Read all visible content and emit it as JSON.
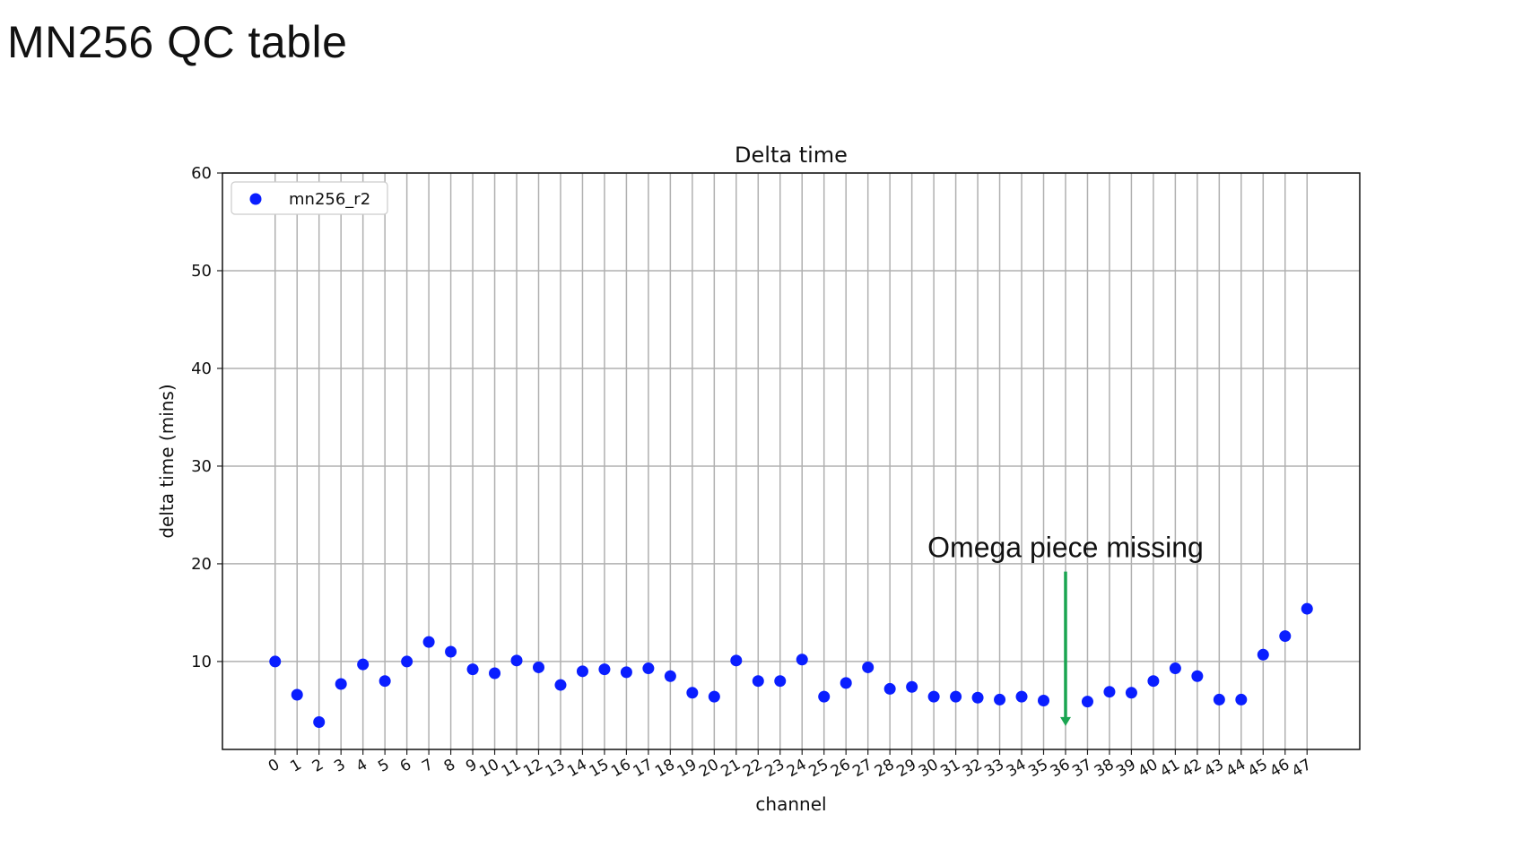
{
  "slide": {
    "title": "MN256 QC table"
  },
  "chart_data": {
    "type": "scatter",
    "title": "Delta time",
    "xlabel": "channel",
    "ylabel": "delta time (mins)",
    "ylim": [
      1,
      60
    ],
    "yticks": [
      10,
      20,
      30,
      40,
      50,
      60
    ],
    "xlim": [
      -2.4,
      49.4
    ],
    "xticks": [
      0,
      1,
      2,
      3,
      4,
      5,
      6,
      7,
      8,
      9,
      10,
      11,
      12,
      13,
      14,
      15,
      16,
      17,
      18,
      19,
      20,
      21,
      22,
      23,
      24,
      25,
      26,
      27,
      28,
      29,
      30,
      31,
      32,
      33,
      34,
      35,
      36,
      37,
      38,
      39,
      40,
      41,
      42,
      43,
      44,
      45,
      46,
      47
    ],
    "grid": true,
    "legend_position": "top-left",
    "series": [
      {
        "name": "mn256_r2",
        "color": "#0a1eff",
        "x": [
          0,
          1,
          2,
          3,
          4,
          5,
          6,
          7,
          8,
          9,
          10,
          11,
          12,
          13,
          14,
          15,
          16,
          17,
          18,
          19,
          20,
          21,
          22,
          23,
          24,
          25,
          26,
          27,
          28,
          29,
          30,
          31,
          32,
          33,
          34,
          35,
          37,
          38,
          39,
          40,
          41,
          42,
          43,
          44,
          45,
          46,
          47
        ],
        "y": [
          10.0,
          6.6,
          3.8,
          7.7,
          9.7,
          8.0,
          10.0,
          12.0,
          11.0,
          9.2,
          8.8,
          10.1,
          9.4,
          7.6,
          9.0,
          9.2,
          8.9,
          9.3,
          8.5,
          6.8,
          6.4,
          10.1,
          8.0,
          8.0,
          10.2,
          6.4,
          7.8,
          9.4,
          7.2,
          7.4,
          6.4,
          6.4,
          6.3,
          6.1,
          6.4,
          6.0,
          5.9,
          6.9,
          6.8,
          8.0,
          9.3,
          8.5,
          6.1,
          6.1,
          10.7,
          12.6,
          15.4
        ]
      }
    ],
    "annotations": [
      {
        "text": "Omega piece missing",
        "x": 36,
        "arrow_from_y": 19.2,
        "arrow_to_y": 3.4,
        "color": "#1aa551"
      }
    ]
  }
}
